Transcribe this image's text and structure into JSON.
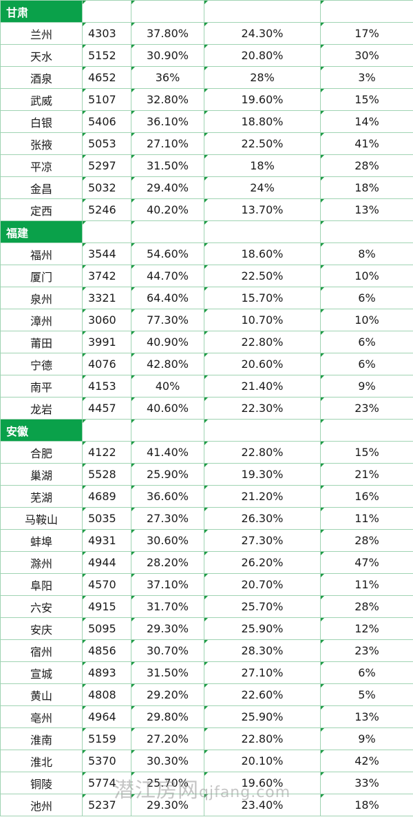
{
  "sections": [
    {
      "province": "甘肃",
      "rows": [
        [
          "兰州",
          "4303",
          "37.80%",
          "24.30%",
          "17%"
        ],
        [
          "天水",
          "5152",
          "30.90%",
          "20.80%",
          "30%"
        ],
        [
          "酒泉",
          "4652",
          "36%",
          "28%",
          "3%"
        ],
        [
          "武威",
          "5107",
          "32.80%",
          "19.60%",
          "15%"
        ],
        [
          "白银",
          "5406",
          "36.10%",
          "18.80%",
          "14%"
        ],
        [
          "张掖",
          "5053",
          "27.10%",
          "22.50%",
          "41%"
        ],
        [
          "平凉",
          "5297",
          "31.50%",
          "18%",
          "28%"
        ],
        [
          "金昌",
          "5032",
          "29.40%",
          "24%",
          "18%"
        ],
        [
          "定西",
          "5246",
          "40.20%",
          "13.70%",
          "13%"
        ]
      ]
    },
    {
      "province": "福建",
      "rows": [
        [
          "福州",
          "3544",
          "54.60%",
          "18.60%",
          "8%"
        ],
        [
          "厦门",
          "3742",
          "44.70%",
          "22.50%",
          "10%"
        ],
        [
          "泉州",
          "3321",
          "64.40%",
          "15.70%",
          "6%"
        ],
        [
          "漳州",
          "3060",
          "77.30%",
          "10.70%",
          "10%"
        ],
        [
          "莆田",
          "3991",
          "40.90%",
          "22.80%",
          "6%"
        ],
        [
          "宁德",
          "4076",
          "42.80%",
          "20.60%",
          "6%"
        ],
        [
          "南平",
          "4153",
          "40%",
          "21.40%",
          "9%"
        ],
        [
          "龙岩",
          "4457",
          "40.60%",
          "22.30%",
          "23%"
        ]
      ]
    },
    {
      "province": "安徽",
      "rows": [
        [
          "合肥",
          "4122",
          "41.40%",
          "22.80%",
          "15%"
        ],
        [
          "巢湖",
          "5528",
          "25.90%",
          "19.30%",
          "21%"
        ],
        [
          "芜湖",
          "4689",
          "36.60%",
          "21.20%",
          "16%"
        ],
        [
          "马鞍山",
          "5035",
          "27.30%",
          "26.30%",
          "11%"
        ],
        [
          "蚌埠",
          "4931",
          "30.60%",
          "27.30%",
          "28%"
        ],
        [
          "滁州",
          "4944",
          "28.20%",
          "26.20%",
          "47%"
        ],
        [
          "阜阳",
          "4570",
          "37.10%",
          "20.70%",
          "11%"
        ],
        [
          "六安",
          "4915",
          "31.70%",
          "25.70%",
          "28%"
        ],
        [
          "安庆",
          "5095",
          "29.30%",
          "25.90%",
          "12%"
        ],
        [
          "宿州",
          "4856",
          "30.70%",
          "28.30%",
          "23%"
        ],
        [
          "宣城",
          "4893",
          "31.50%",
          "27.10%",
          "6%"
        ],
        [
          "黄山",
          "4808",
          "29.20%",
          "22.60%",
          "5%"
        ],
        [
          "亳州",
          "4964",
          "29.80%",
          "25.90%",
          "13%"
        ],
        [
          "淮南",
          "5159",
          "27.20%",
          "22.80%",
          "9%"
        ],
        [
          "淮北",
          "5370",
          "30.30%",
          "20.10%",
          "42%"
        ],
        [
          "铜陵",
          "5774",
          "25.70%",
          "19.60%",
          "33%"
        ],
        [
          "池州",
          "5237",
          "29.30%",
          "23.40%",
          "18%"
        ]
      ]
    }
  ],
  "watermark": {
    "brand": "潜江房网",
    "url": "qjfang.com"
  }
}
